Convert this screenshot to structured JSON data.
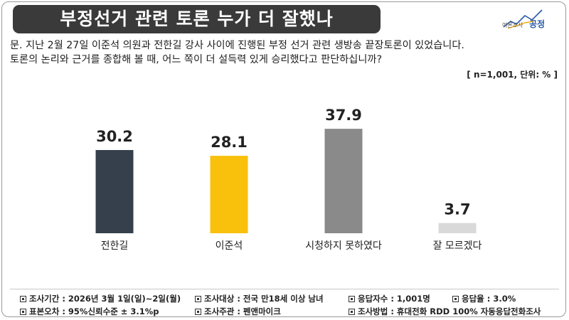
{
  "title": "부정선거 관련 토론 누가 더 잘했나",
  "logo": {
    "label": "여론조사",
    "name": "공정"
  },
  "question": {
    "line1": "문. 지난 2월 27일 이준석 의원과 전한길 강사 사이에 진행된 부정 선거 관련 생방송 끝장토론이 있었습니다.",
    "line2": "토론의 논리와 근거를 종합해 볼 때, 어느 쪽이 더 설득력 있게 승리했다고 판단하십니까?"
  },
  "unit_note": "[ n=1,001, 단위: % ]",
  "chart_data": {
    "type": "bar",
    "categories": [
      "전한길",
      "이준석",
      "시청하지 못하였다",
      "잘 모르겠다"
    ],
    "values": [
      30.2,
      28.1,
      37.9,
      3.7
    ],
    "value_labels": [
      "30.2",
      "28.1",
      "37.9",
      "3.7"
    ],
    "colors": [
      "#36404d",
      "#f9c00c",
      "#8a8a8a",
      "#d9d9d9"
    ],
    "ylim": [
      0,
      40
    ],
    "grid": false,
    "legend": "none",
    "title": "",
    "xlabel": "",
    "ylabel": ""
  },
  "footer": {
    "period": "조사기간 : 2026년 3월 1일(일)~2일(월)",
    "target": "조사대상 : 전국 만18세 이상 남녀",
    "respondents": "응답자수 : 1,001명",
    "response_rate": "응답율 : 3.0%",
    "error": "표본오차 : 95%신뢰수준 ± 3.1%p",
    "host": "조사주관 : 펜앤마이크",
    "method": "조사방법 : 휴대전화 RDD 100% 자동응답전화조사"
  }
}
